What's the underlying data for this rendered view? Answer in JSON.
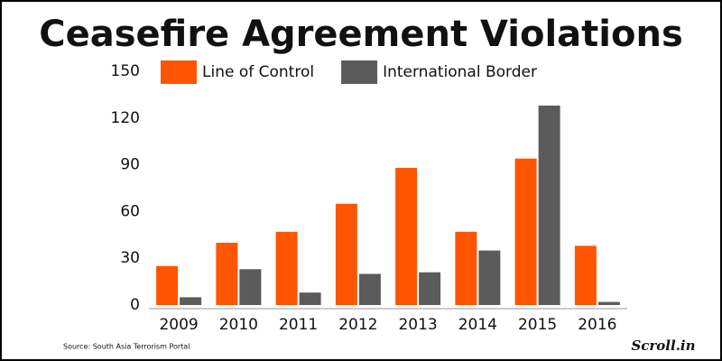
{
  "chart_data": {
    "type": "bar",
    "title": "Ceasefire Agreement Violations",
    "categories": [
      "2009",
      "2010",
      "2011",
      "2012",
      "2013",
      "2014",
      "2015",
      "2016"
    ],
    "series": [
      {
        "name": "Line of Control",
        "color": "#ff5500",
        "values": [
          25,
          40,
          47,
          65,
          88,
          47,
          94,
          38
        ]
      },
      {
        "name": "International Border",
        "color": "#5b5b5b",
        "values": [
          5,
          23,
          8,
          20,
          21,
          35,
          128,
          2
        ]
      }
    ],
    "ylim": [
      0,
      150
    ],
    "yticks": [
      0,
      30,
      60,
      90,
      120,
      150
    ],
    "grid": false,
    "source": "Source: South Asia Terrorism Portal",
    "brand": "Scroll.in"
  }
}
